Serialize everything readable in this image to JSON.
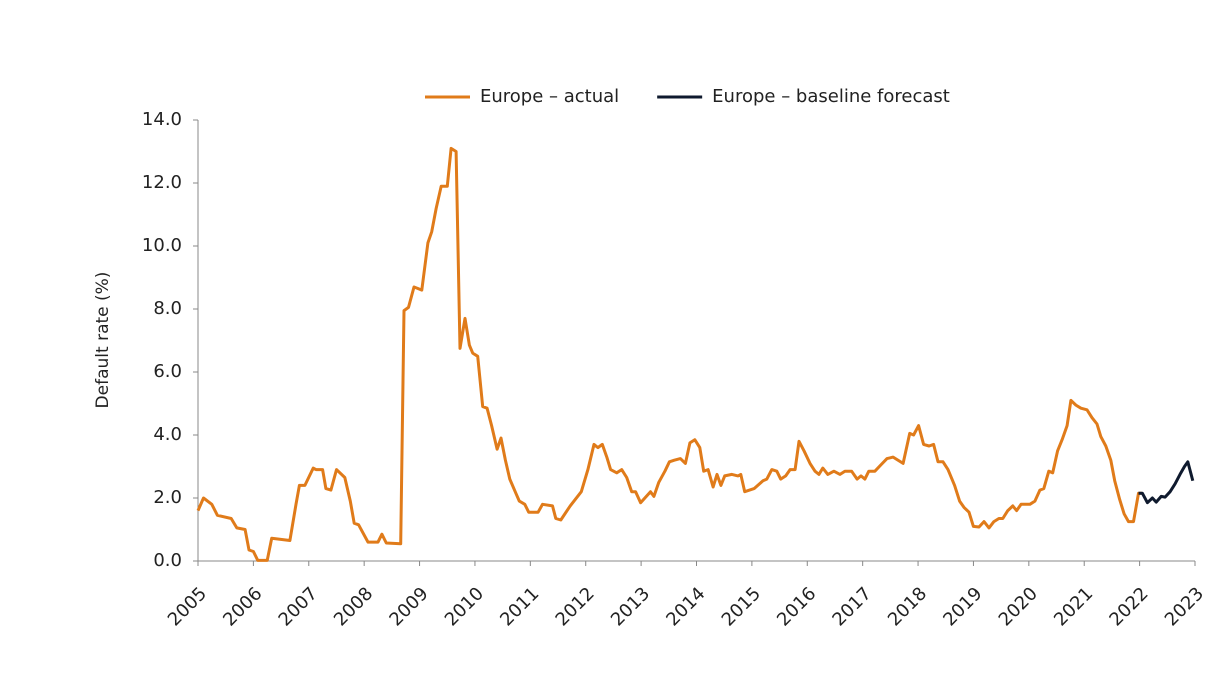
{
  "chart_data": {
    "type": "line",
    "y_label": "Default rate (%)",
    "xlim": [
      2005,
      2023
    ],
    "xticks": [
      2005,
      2006,
      2007,
      2008,
      2009,
      2010,
      2011,
      2012,
      2013,
      2014,
      2015,
      2016,
      2017,
      2018,
      2019,
      2020,
      2021,
      2022,
      2023
    ],
    "ylim": [
      0,
      14
    ],
    "yticks": [
      {
        "value": 0,
        "label": "0.0"
      },
      {
        "value": 2,
        "label": "2.0"
      },
      {
        "value": 4,
        "label": "4.0"
      },
      {
        "value": 6,
        "label": "6.0"
      },
      {
        "value": 8,
        "label": "8.0"
      },
      {
        "value": 10,
        "label": "10.0"
      },
      {
        "value": 12,
        "label": "12.0"
      },
      {
        "value": 14,
        "label": "14.0"
      }
    ],
    "grid": false,
    "legend": "top",
    "series": [
      {
        "name": "Europe – actual",
        "color": "#e07b1a",
        "x": [
          2005.0,
          2005.1,
          2005.25,
          2005.35,
          2005.6,
          2005.7,
          2005.85,
          2005.92,
          2006.0,
          2006.08,
          2006.25,
          2006.33,
          2006.66,
          2006.77,
          2006.83,
          2006.93,
          2007.08,
          2007.13,
          2007.25,
          2007.31,
          2007.4,
          2007.5,
          2007.65,
          2007.75,
          2007.82,
          2007.9,
          2008.07,
          2008.25,
          2008.32,
          2008.4,
          2008.66,
          2008.72,
          2008.8,
          2008.9,
          2008.97,
          2009.04,
          2009.15,
          2009.22,
          2009.3,
          2009.39,
          2009.5,
          2009.57,
          2009.66,
          2009.73,
          2009.82,
          2009.9,
          2009.96,
          2010.05,
          2010.14,
          2010.22,
          2010.3,
          2010.4,
          2010.47,
          2010.55,
          2010.63,
          2010.74,
          2010.8,
          2010.9,
          2010.97,
          2011.14,
          2011.22,
          2011.4,
          2011.46,
          2011.55,
          2011.72,
          2011.92,
          2012.04,
          2012.15,
          2012.22,
          2012.3,
          2012.38,
          2012.45,
          2012.56,
          2012.65,
          2012.74,
          2012.83,
          2012.9,
          2012.99,
          2013.17,
          2013.23,
          2013.32,
          2013.43,
          2013.51,
          2013.6,
          2013.71,
          2013.8,
          2013.88,
          2013.97,
          2014.06,
          2014.13,
          2014.21,
          2014.3,
          2014.37,
          2014.44,
          2014.51,
          2014.64,
          2014.75,
          2014.8,
          2014.87,
          2015.04,
          2015.2,
          2015.27,
          2015.36,
          2015.45,
          2015.52,
          2015.61,
          2015.69,
          2015.78,
          2015.85,
          2015.94,
          2016.05,
          2016.14,
          2016.21,
          2016.28,
          2016.37,
          2016.48,
          2016.59,
          2016.68,
          2016.8,
          2016.9,
          2016.97,
          2017.04,
          2017.11,
          2017.22,
          2017.33,
          2017.44,
          2017.55,
          2017.73,
          2017.85,
          2017.92,
          2018.01,
          2018.1,
          2018.2,
          2018.28,
          2018.36,
          2018.45,
          2018.54,
          2018.66,
          2018.75,
          2018.83,
          2018.92,
          2019.0,
          2019.1,
          2019.19,
          2019.28,
          2019.37,
          2019.46,
          2019.53,
          2019.62,
          2019.71,
          2019.78,
          2019.86,
          2020.02,
          2020.11,
          2020.2,
          2020.27,
          2020.36,
          2020.43,
          2020.52,
          2020.6,
          2020.69,
          2020.76,
          2020.85,
          2020.94,
          2021.05,
          2021.14,
          2021.23,
          2021.3,
          2021.39,
          2021.48,
          2021.55,
          2021.64,
          2021.72,
          2021.8,
          2021.89,
          2021.98,
          2022.04
        ],
        "values": [
          1.6,
          2.0,
          1.8,
          1.45,
          1.35,
          1.05,
          1.0,
          0.35,
          0.3,
          0.02,
          0.02,
          0.72,
          0.65,
          1.8,
          2.4,
          2.4,
          2.95,
          2.9,
          2.9,
          2.3,
          2.25,
          2.9,
          2.65,
          1.9,
          1.2,
          1.15,
          0.6,
          0.6,
          0.85,
          0.57,
          0.55,
          7.95,
          8.05,
          8.7,
          8.65,
          8.6,
          10.1,
          10.45,
          11.2,
          11.9,
          11.9,
          13.1,
          13.0,
          6.75,
          7.7,
          6.85,
          6.6,
          6.5,
          4.9,
          4.85,
          4.3,
          3.55,
          3.9,
          3.2,
          2.6,
          2.15,
          1.9,
          1.8,
          1.55,
          1.55,
          1.8,
          1.75,
          1.35,
          1.3,
          1.75,
          2.2,
          2.9,
          3.7,
          3.6,
          3.7,
          3.3,
          2.9,
          2.8,
          2.9,
          2.65,
          2.2,
          2.2,
          1.85,
          2.2,
          2.05,
          2.5,
          2.85,
          3.15,
          3.2,
          3.25,
          3.1,
          3.75,
          3.85,
          3.6,
          2.85,
          2.9,
          2.35,
          2.75,
          2.4,
          2.7,
          2.75,
          2.7,
          2.75,
          2.2,
          2.3,
          2.55,
          2.6,
          2.9,
          2.85,
          2.6,
          2.7,
          2.9,
          2.9,
          3.8,
          3.5,
          3.1,
          2.85,
          2.75,
          2.95,
          2.75,
          2.85,
          2.75,
          2.85,
          2.85,
          2.6,
          2.7,
          2.6,
          2.85,
          2.85,
          3.05,
          3.25,
          3.3,
          3.1,
          4.05,
          4.0,
          4.3,
          3.7,
          3.65,
          3.7,
          3.15,
          3.15,
          2.9,
          2.4,
          1.9,
          1.7,
          1.55,
          1.1,
          1.08,
          1.25,
          1.05,
          1.25,
          1.35,
          1.35,
          1.6,
          1.75,
          1.6,
          1.8,
          1.8,
          1.9,
          2.25,
          2.3,
          2.85,
          2.8,
          3.5,
          3.85,
          4.3,
          5.1,
          4.95,
          4.85,
          4.8,
          4.55,
          4.35,
          3.95,
          3.65,
          3.2,
          2.55,
          1.95,
          1.5,
          1.25,
          1.25,
          2.15,
          2.15
        ]
      },
      {
        "name": "Europe – baseline forecast",
        "color": "#0f1a2e",
        "x": [
          2021.98,
          2022.05,
          2022.14,
          2022.23,
          2022.3,
          2022.39,
          2022.46,
          2022.55,
          2022.64,
          2022.73,
          2022.81,
          2022.87,
          2022.96
        ],
        "values": [
          2.15,
          2.15,
          1.85,
          2.0,
          1.87,
          2.05,
          2.03,
          2.2,
          2.45,
          2.75,
          3.0,
          3.15,
          2.55
        ]
      }
    ]
  }
}
